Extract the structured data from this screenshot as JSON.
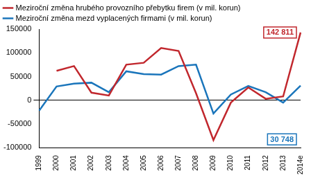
{
  "chart_data": {
    "type": "line",
    "categories": [
      "1999",
      "2000",
      "2001",
      "2002",
      "2003",
      "2004",
      "2005",
      "2006",
      "2007",
      "2008",
      "2009",
      "2010",
      "2011",
      "2012",
      "2013",
      "2014e"
    ],
    "series": [
      {
        "name": "Meziroční změna hrubého provozního přebytku firem (v mil. korun)",
        "color": "#c1272d",
        "values": [
          null,
          62000,
          72000,
          16000,
          10000,
          75000,
          79000,
          110000,
          104000,
          15000,
          -84000,
          -5000,
          27000,
          3000,
          8000,
          142811
        ],
        "value_labels": [
          null,
          null,
          null,
          null,
          null,
          null,
          null,
          null,
          null,
          null,
          null,
          null,
          null,
          null,
          null,
          "142 811"
        ]
      },
      {
        "name": "Meziroční změna mezd vyplacených firmami (v mil. korun)",
        "color": "#1a75bb",
        "values": [
          -22000,
          29000,
          35000,
          37000,
          17000,
          61000,
          55000,
          54000,
          72000,
          75000,
          -28000,
          12000,
          30000,
          17000,
          -5000,
          30748
        ],
        "value_labels": [
          null,
          null,
          null,
          null,
          null,
          null,
          null,
          null,
          null,
          null,
          null,
          null,
          null,
          null,
          null,
          "30 748"
        ]
      }
    ],
    "ylim": [
      -100000,
      150000
    ],
    "yticks": [
      -100000,
      -50000,
      0,
      50000,
      100000,
      150000
    ],
    "grid": false,
    "legend": "top",
    "data_labels": true
  }
}
